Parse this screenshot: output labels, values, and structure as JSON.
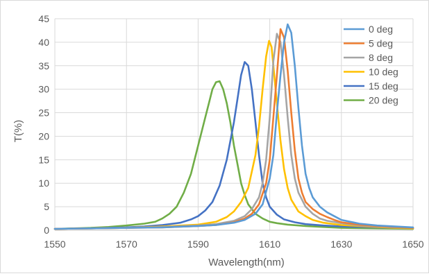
{
  "chart_data": {
    "type": "line",
    "title": "",
    "xlabel": "Wavelength(nm)",
    "ylabel": "T(%)",
    "xlim": [
      1550,
      1650
    ],
    "ylim": [
      0,
      45
    ],
    "xticks": [
      1550,
      1570,
      1590,
      1610,
      1630,
      1650
    ],
    "yticks": [
      0,
      5,
      10,
      15,
      20,
      25,
      30,
      35,
      40,
      45
    ],
    "grid": "vertical-and-horizontal",
    "legend": "right",
    "series": [
      {
        "name": "0 deg",
        "color": "#5b9bd5",
        "points": [
          [
            1550,
            0.3
          ],
          [
            1560,
            0.4
          ],
          [
            1570,
            0.5
          ],
          [
            1580,
            0.6
          ],
          [
            1590,
            0.9
          ],
          [
            1595,
            1.1
          ],
          [
            1600,
            1.6
          ],
          [
            1603,
            2.2
          ],
          [
            1606,
            3.5
          ],
          [
            1608,
            5.5
          ],
          [
            1610,
            11
          ],
          [
            1611,
            16
          ],
          [
            1612,
            25
          ],
          [
            1613,
            33
          ],
          [
            1614,
            40
          ],
          [
            1615,
            43.8
          ],
          [
            1616,
            42
          ],
          [
            1617,
            35
          ],
          [
            1618,
            26
          ],
          [
            1619,
            18
          ],
          [
            1620,
            12
          ],
          [
            1621,
            9
          ],
          [
            1622,
            7
          ],
          [
            1624,
            5
          ],
          [
            1626,
            3.8
          ],
          [
            1628,
            3
          ],
          [
            1630,
            2.2
          ],
          [
            1635,
            1.4
          ],
          [
            1640,
            1
          ],
          [
            1645,
            0.8
          ],
          [
            1650,
            0.6
          ]
        ]
      },
      {
        "name": "5 deg",
        "color": "#ed7d31",
        "points": [
          [
            1550,
            0.3
          ],
          [
            1560,
            0.4
          ],
          [
            1570,
            0.5
          ],
          [
            1580,
            0.6
          ],
          [
            1590,
            0.9
          ],
          [
            1595,
            1.1
          ],
          [
            1600,
            1.7
          ],
          [
            1603,
            2.5
          ],
          [
            1605,
            3.5
          ],
          [
            1607,
            5.5
          ],
          [
            1609,
            10
          ],
          [
            1610,
            15
          ],
          [
            1611,
            24
          ],
          [
            1612,
            33
          ],
          [
            1613,
            42.8
          ],
          [
            1614,
            41
          ],
          [
            1615,
            34
          ],
          [
            1616,
            25
          ],
          [
            1617,
            17
          ],
          [
            1618,
            11
          ],
          [
            1619,
            8
          ],
          [
            1620,
            6
          ],
          [
            1622,
            4.5
          ],
          [
            1624,
            3.5
          ],
          [
            1626,
            2.8
          ],
          [
            1628,
            2.2
          ],
          [
            1630,
            1.7
          ],
          [
            1635,
            1.2
          ],
          [
            1640,
            0.9
          ],
          [
            1645,
            0.7
          ],
          [
            1650,
            0.5
          ]
        ]
      },
      {
        "name": "8 deg",
        "color": "#a5a5a5",
        "points": [
          [
            1550,
            0.3
          ],
          [
            1560,
            0.4
          ],
          [
            1570,
            0.5
          ],
          [
            1580,
            0.7
          ],
          [
            1590,
            1
          ],
          [
            1595,
            1.3
          ],
          [
            1600,
            2
          ],
          [
            1603,
            3
          ],
          [
            1605,
            4.5
          ],
          [
            1607,
            7
          ],
          [
            1608,
            10
          ],
          [
            1609,
            15
          ],
          [
            1610,
            24
          ],
          [
            1611,
            36
          ],
          [
            1612,
            41.8
          ],
          [
            1613,
            40
          ],
          [
            1614,
            33
          ],
          [
            1615,
            24
          ],
          [
            1616,
            16
          ],
          [
            1617,
            11
          ],
          [
            1618,
            8
          ],
          [
            1620,
            5
          ],
          [
            1622,
            3.5
          ],
          [
            1624,
            2.5
          ],
          [
            1626,
            2
          ],
          [
            1630,
            1.5
          ],
          [
            1635,
            1
          ],
          [
            1640,
            0.8
          ],
          [
            1645,
            0.6
          ],
          [
            1650,
            0.5
          ]
        ]
      },
      {
        "name": "10 deg",
        "color": "#ffc000",
        "points": [
          [
            1550,
            0.3
          ],
          [
            1560,
            0.4
          ],
          [
            1570,
            0.5
          ],
          [
            1580,
            0.8
          ],
          [
            1590,
            1.2
          ],
          [
            1595,
            1.8
          ],
          [
            1598,
            2.8
          ],
          [
            1600,
            4
          ],
          [
            1602,
            6
          ],
          [
            1604,
            9
          ],
          [
            1606,
            16
          ],
          [
            1607,
            22
          ],
          [
            1608,
            30
          ],
          [
            1609,
            37
          ],
          [
            1609.8,
            40.3
          ],
          [
            1610.5,
            39
          ],
          [
            1611,
            35
          ],
          [
            1612,
            27
          ],
          [
            1613,
            19
          ],
          [
            1614,
            13
          ],
          [
            1615,
            9
          ],
          [
            1616,
            6.5
          ],
          [
            1618,
            4
          ],
          [
            1620,
            3
          ],
          [
            1622,
            2.2
          ],
          [
            1625,
            1.6
          ],
          [
            1630,
            1.1
          ],
          [
            1635,
            0.9
          ],
          [
            1640,
            0.7
          ],
          [
            1645,
            0.5
          ],
          [
            1650,
            0.4
          ]
        ]
      },
      {
        "name": "15 deg",
        "color": "#4472c4",
        "points": [
          [
            1550,
            0.3
          ],
          [
            1560,
            0.4
          ],
          [
            1570,
            0.6
          ],
          [
            1575,
            0.8
          ],
          [
            1580,
            1.1
          ],
          [
            1585,
            1.6
          ],
          [
            1588,
            2.3
          ],
          [
            1590,
            3
          ],
          [
            1592,
            4.2
          ],
          [
            1594,
            6
          ],
          [
            1596,
            9.5
          ],
          [
            1598,
            15
          ],
          [
            1600,
            23
          ],
          [
            1601,
            28
          ],
          [
            1602,
            33
          ],
          [
            1603,
            35.8
          ],
          [
            1604,
            35
          ],
          [
            1605,
            30
          ],
          [
            1606,
            23
          ],
          [
            1607,
            16
          ],
          [
            1608,
            10
          ],
          [
            1609,
            7
          ],
          [
            1610,
            5
          ],
          [
            1612,
            3.3
          ],
          [
            1614,
            2.3
          ],
          [
            1617,
            1.7
          ],
          [
            1620,
            1.3
          ],
          [
            1625,
            1
          ],
          [
            1630,
            0.8
          ],
          [
            1640,
            0.6
          ],
          [
            1650,
            0.4
          ]
        ]
      },
      {
        "name": "20 deg",
        "color": "#70ad47",
        "points": [
          [
            1550,
            0.3
          ],
          [
            1560,
            0.5
          ],
          [
            1565,
            0.7
          ],
          [
            1570,
            1
          ],
          [
            1575,
            1.4
          ],
          [
            1578,
            1.8
          ],
          [
            1580,
            2.5
          ],
          [
            1582,
            3.5
          ],
          [
            1584,
            5
          ],
          [
            1586,
            8
          ],
          [
            1588,
            12
          ],
          [
            1590,
            18
          ],
          [
            1592,
            24
          ],
          [
            1593,
            27
          ],
          [
            1594,
            30
          ],
          [
            1595,
            31.5
          ],
          [
            1596,
            31.7
          ],
          [
            1597,
            30
          ],
          [
            1598,
            27
          ],
          [
            1599,
            23
          ],
          [
            1600,
            18
          ],
          [
            1601,
            14
          ],
          [
            1602,
            10
          ],
          [
            1603,
            7.5
          ],
          [
            1604,
            5.5
          ],
          [
            1606,
            3.5
          ],
          [
            1608,
            2.5
          ],
          [
            1610,
            1.8
          ],
          [
            1612,
            1.5
          ],
          [
            1615,
            1.2
          ],
          [
            1620,
            0.9
          ],
          [
            1625,
            0.7
          ],
          [
            1630,
            0.5
          ],
          [
            1640,
            0.4
          ],
          [
            1650,
            0.3
          ]
        ]
      }
    ]
  }
}
